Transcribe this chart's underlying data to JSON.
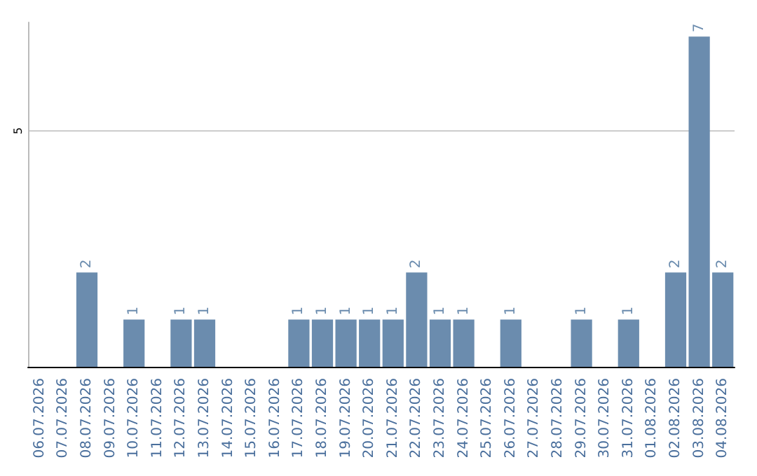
{
  "chart_data": {
    "type": "bar",
    "categories": [
      "06.07.2026",
      "07.07.2026",
      "08.07.2026",
      "09.07.2026",
      "10.07.2026",
      "11.07.2026",
      "12.07.2026",
      "13.07.2026",
      "14.07.2026",
      "15.07.2026",
      "16.07.2026",
      "17.07.2026",
      "18.07.2026",
      "19.07.2026",
      "20.07.2026",
      "21.07.2026",
      "22.07.2026",
      "23.07.2026",
      "24.07.2026",
      "25.07.2026",
      "26.07.2026",
      "27.07.2026",
      "28.07.2026",
      "29.07.2026",
      "30.07.2026",
      "31.07.2026",
      "01.08.2026",
      "02.08.2026",
      "03.08.2026",
      "04.08.2026"
    ],
    "values": [
      0,
      0,
      2,
      0,
      1,
      0,
      1,
      1,
      0,
      0,
      0,
      1,
      1,
      1,
      1,
      1,
      2,
      1,
      1,
      0,
      1,
      0,
      0,
      1,
      0,
      1,
      0,
      2,
      7,
      2
    ],
    "value_labels": [
      null,
      null,
      "2",
      null,
      "1",
      null,
      "1",
      "1",
      null,
      null,
      null,
      "1",
      "1",
      "1",
      "1",
      "1",
      "2",
      "1",
      "1",
      null,
      "1",
      null,
      null,
      "1",
      null,
      "1",
      null,
      "2",
      "7",
      "2"
    ],
    "color": "#6b8cae",
    "ylim": [
      0,
      7.3
    ],
    "yticks": [
      5
    ],
    "grid": "y"
  }
}
